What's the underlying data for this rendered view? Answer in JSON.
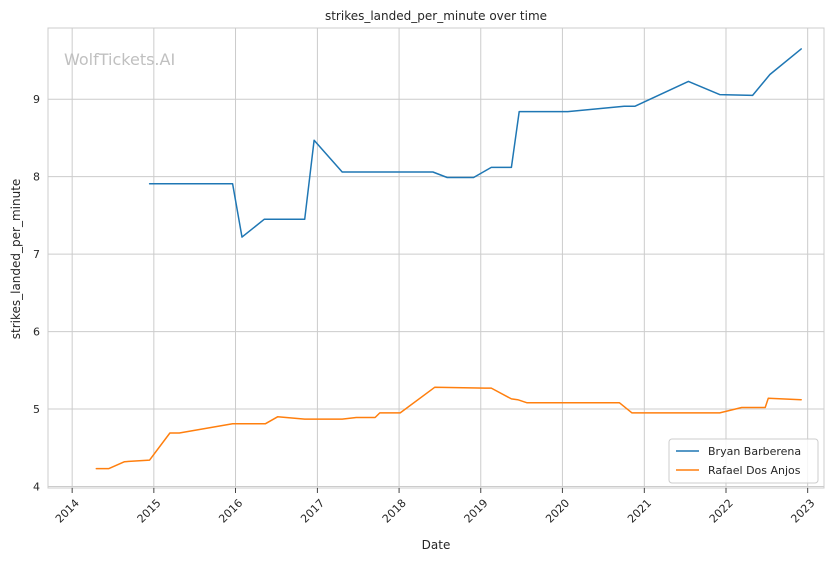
{
  "chart_data": {
    "type": "line",
    "title": "strikes_landed_per_minute over time",
    "xlabel": "Date",
    "ylabel": "strikes_landed_per_minute",
    "watermark": "WolfTickets.AI",
    "x_ticks": [
      "2014",
      "2015",
      "2016",
      "2017",
      "2018",
      "2019",
      "2020",
      "2021",
      "2022",
      "2023"
    ],
    "y_ticks": [
      4,
      5,
      6,
      7,
      8,
      9
    ],
    "xlim": [
      "2013-09-15",
      "2023-03-15"
    ],
    "ylim": [
      3.98,
      9.92
    ],
    "grid": true,
    "legend_position": "lower-right",
    "series": [
      {
        "name": "Bryan Barberena",
        "color": "#1f77b4",
        "points": [
          [
            "2014-12-13",
            7.91
          ],
          [
            "2015-12-19",
            7.91
          ],
          [
            "2016-01-30",
            7.22
          ],
          [
            "2016-05-08",
            7.45
          ],
          [
            "2016-11-05",
            7.45
          ],
          [
            "2016-12-17",
            8.47
          ],
          [
            "2017-04-22",
            8.06
          ],
          [
            "2017-09-16",
            8.06
          ],
          [
            "2018-06-01",
            8.06
          ],
          [
            "2018-08-04",
            7.99
          ],
          [
            "2018-11-30",
            7.99
          ],
          [
            "2019-02-17",
            8.12
          ],
          [
            "2019-05-18",
            8.12
          ],
          [
            "2019-06-22",
            8.84
          ],
          [
            "2020-01-25",
            8.84
          ],
          [
            "2020-10-03",
            8.91
          ],
          [
            "2020-11-21",
            8.91
          ],
          [
            "2021-07-17",
            9.23
          ],
          [
            "2021-12-04",
            9.06
          ],
          [
            "2022-04-30",
            9.05
          ],
          [
            "2022-07-16",
            9.32
          ],
          [
            "2022-12-03",
            9.65
          ]
        ]
      },
      {
        "name": "Rafael Dos Anjos",
        "color": "#ff7f0e",
        "points": [
          [
            "2014-04-19",
            4.23
          ],
          [
            "2014-06-14",
            4.23
          ],
          [
            "2014-08-23",
            4.32
          ],
          [
            "2014-12-13",
            4.34
          ],
          [
            "2015-03-14",
            4.69
          ],
          [
            "2015-04-25",
            4.69
          ],
          [
            "2015-12-19",
            4.81
          ],
          [
            "2016-05-14",
            4.81
          ],
          [
            "2016-07-07",
            4.9
          ],
          [
            "2016-11-05",
            4.87
          ],
          [
            "2017-04-22",
            4.87
          ],
          [
            "2017-06-24",
            4.89
          ],
          [
            "2017-09-16",
            4.89
          ],
          [
            "2017-10-07",
            4.95
          ],
          [
            "2018-01-06",
            4.95
          ],
          [
            "2018-06-09",
            5.28
          ],
          [
            "2019-01-19",
            5.27
          ],
          [
            "2019-02-17",
            5.27
          ],
          [
            "2019-05-18",
            5.13
          ],
          [
            "2019-06-15",
            5.12
          ],
          [
            "2019-07-27",
            5.08
          ],
          [
            "2020-01-25",
            5.08
          ],
          [
            "2020-09-12",
            5.08
          ],
          [
            "2020-11-07",
            4.95
          ],
          [
            "2021-12-04",
            4.95
          ],
          [
            "2022-03-12",
            5.02
          ],
          [
            "2022-06-25",
            5.02
          ],
          [
            "2022-07-09",
            5.14
          ],
          [
            "2022-12-03",
            5.12
          ]
        ]
      }
    ]
  }
}
